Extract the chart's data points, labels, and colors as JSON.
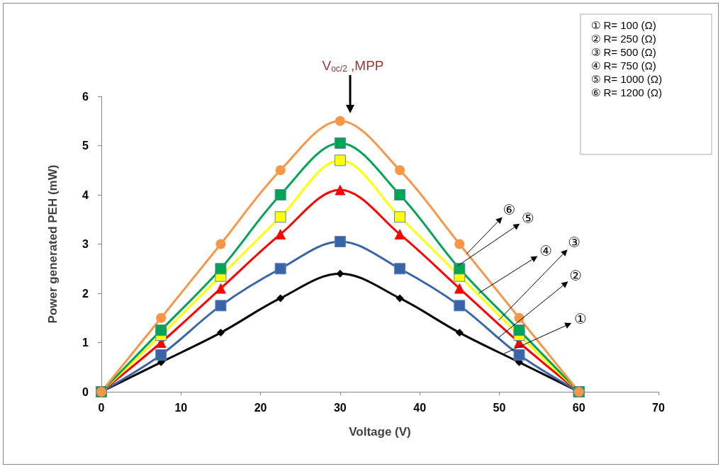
{
  "chart_data": {
    "type": "line",
    "xlabel": "Voltage (V)",
    "ylabel": "Power generated PEH (mW)",
    "x": [
      0,
      7.5,
      15,
      22.5,
      30,
      37.5,
      45,
      52.5,
      60
    ],
    "series": [
      {
        "name": "① R= 100 (Ω)",
        "color": "#000000",
        "marker": "diamond",
        "values": [
          0,
          0.6,
          1.2,
          1.9,
          2.4,
          1.9,
          1.2,
          0.6,
          0
        ]
      },
      {
        "name": "② R= 250 (Ω)",
        "color": "#3a64a8",
        "marker": "square",
        "values": [
          0,
          0.75,
          1.75,
          2.5,
          3.05,
          2.5,
          1.75,
          0.75,
          0
        ]
      },
      {
        "name": "③ R= 500 (Ω)",
        "color": "#ff0000",
        "marker": "triangle",
        "values": [
          0,
          1.0,
          2.1,
          3.2,
          4.1,
          3.2,
          2.1,
          1.0,
          0
        ]
      },
      {
        "name": "④ R= 750 (Ω)",
        "color": "#ffff00",
        "marker": "square",
        "values": [
          0,
          1.15,
          2.35,
          3.55,
          4.7,
          3.55,
          2.35,
          1.15,
          0
        ]
      },
      {
        "name": "⑤ R= 1000 (Ω)",
        "color": "#00a651",
        "marker": "square",
        "values": [
          0,
          1.25,
          2.5,
          4.0,
          5.05,
          4.0,
          2.5,
          1.25,
          0
        ]
      },
      {
        "name": "⑥ R= 1200 (Ω)",
        "color": "#f79646",
        "marker": "circle",
        "values": [
          0,
          1.5,
          3.0,
          4.5,
          5.5,
          4.5,
          3.0,
          1.5,
          0
        ]
      }
    ],
    "xlim": [
      0,
      70
    ],
    "xticks": [
      0,
      10,
      20,
      30,
      40,
      50,
      60,
      70
    ],
    "ylim": [
      0,
      6
    ],
    "yticks": [
      0,
      1,
      2,
      3,
      4,
      5,
      6
    ],
    "grid": false,
    "legend": "top right",
    "annotations": [
      "V$_{oc/2}$ ,MPP",
      {
        "text": "⑥",
        "x": 45.9,
        "y": 2.8
      },
      {
        "text": "⑤",
        "x": 44.7,
        "y": 2.55
      },
      {
        "text": "④",
        "x": 47.4,
        "y": 2.0
      },
      {
        "text": "③",
        "x": 49.9,
        "y": 1.45
      },
      {
        "text": "②",
        "x": 49.9,
        "y": 1.1
      },
      {
        "text": "①",
        "x": 50.4,
        "y": 0.76
      }
    ]
  }
}
